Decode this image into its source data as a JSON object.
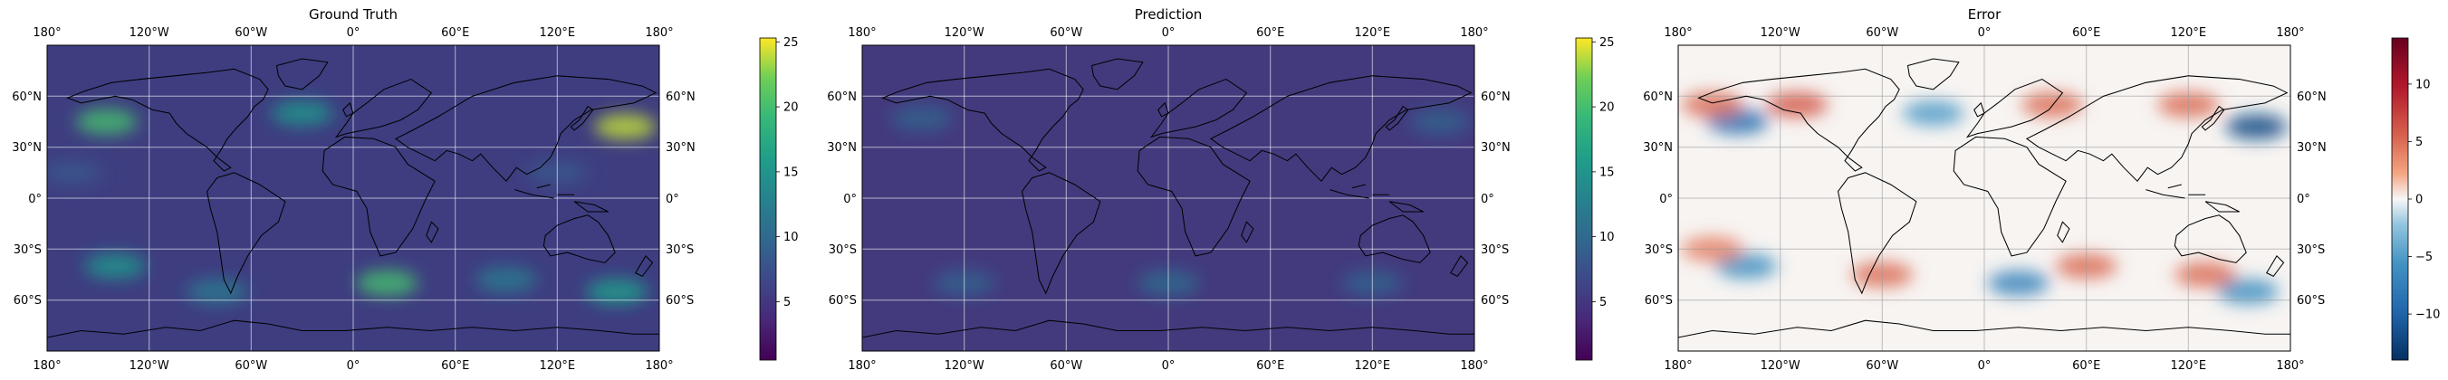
{
  "chart_data": [
    {
      "type": "heatmap",
      "title": "Ground Truth",
      "projection": "plate carree",
      "grid": true,
      "colormap": "viridis",
      "x_ticks": [
        "180°",
        "120°W",
        "60°W",
        "0°",
        "60°E",
        "120°E",
        "180°"
      ],
      "x_tick_values": [
        -180,
        -120,
        -60,
        0,
        60,
        120,
        180
      ],
      "y_ticks": [
        "60°N",
        "30°N",
        "0°",
        "30°S",
        "60°S"
      ],
      "y_tick_values": [
        60,
        30,
        0,
        -30,
        -60
      ],
      "colorbar": {
        "ticks": [
          "5",
          "10",
          "15",
          "20",
          "25"
        ],
        "tick_values": [
          5,
          10,
          15,
          20,
          25
        ],
        "range": [
          0.5,
          25.3
        ]
      },
      "features": [
        {
          "lon": -145,
          "lat": 45,
          "value": 20
        },
        {
          "lon": 160,
          "lat": 42,
          "value": 24
        },
        {
          "lon": -140,
          "lat": -40,
          "value": 15
        },
        {
          "lon": 20,
          "lat": -50,
          "value": 20
        },
        {
          "lon": 155,
          "lat": -55,
          "value": 16
        },
        {
          "lon": -30,
          "lat": 50,
          "value": 15
        },
        {
          "lon": -80,
          "lat": -55,
          "value": 12
        },
        {
          "lon": 90,
          "lat": -48,
          "value": 12
        },
        {
          "lon": -165,
          "lat": 15,
          "value": 8
        },
        {
          "lon": 120,
          "lat": 15,
          "value": 8
        }
      ]
    },
    {
      "type": "heatmap",
      "title": "Prediction",
      "projection": "plate carree",
      "grid": true,
      "colormap": "viridis",
      "x_ticks": [
        "180°",
        "120°W",
        "60°W",
        "0°",
        "60°E",
        "120°E",
        "180°"
      ],
      "x_tick_values": [
        -180,
        -120,
        -60,
        0,
        60,
        120,
        180
      ],
      "y_ticks": [
        "60°N",
        "30°N",
        "0°",
        "30°S",
        "60°S"
      ],
      "y_tick_values": [
        60,
        30,
        0,
        -30,
        -60
      ],
      "colorbar": {
        "ticks": [
          "5",
          "10",
          "15",
          "20",
          "25"
        ],
        "tick_values": [
          5,
          10,
          15,
          20,
          25
        ],
        "range": [
          0.5,
          25.3
        ]
      },
      "features": [
        {
          "lon": -145,
          "lat": 47,
          "value": 9
        },
        {
          "lon": 160,
          "lat": 45,
          "value": 9
        },
        {
          "lon": 0,
          "lat": -50,
          "value": 10
        },
        {
          "lon": 120,
          "lat": -50,
          "value": 9
        },
        {
          "lon": -120,
          "lat": -50,
          "value": 9
        }
      ]
    },
    {
      "type": "heatmap",
      "title": "Error",
      "projection": "plate carree",
      "grid": true,
      "colormap": "RdBu_r",
      "x_ticks": [
        "180°",
        "120°W",
        "60°W",
        "0°",
        "60°E",
        "120°E",
        "180°"
      ],
      "x_tick_values": [
        -180,
        -120,
        -60,
        0,
        60,
        120,
        180
      ],
      "y_ticks": [
        "60°N",
        "30°N",
        "0°",
        "30°S",
        "60°S"
      ],
      "y_tick_values": [
        60,
        30,
        0,
        -30,
        -60
      ],
      "colorbar": {
        "ticks": [
          "10",
          "5",
          "0",
          "−5",
          "−10"
        ],
        "tick_values": [
          10,
          5,
          0,
          -5,
          -10
        ],
        "range": [
          -14,
          14
        ]
      },
      "features": [
        {
          "lon": -145,
          "lat": 45,
          "value": -9
        },
        {
          "lon": 160,
          "lat": 42,
          "value": -12
        },
        {
          "lon": -140,
          "lat": -40,
          "value": -6
        },
        {
          "lon": 20,
          "lat": -50,
          "value": -7
        },
        {
          "lon": 155,
          "lat": -55,
          "value": -6
        },
        {
          "lon": -30,
          "lat": 50,
          "value": -5
        },
        {
          "lon": -110,
          "lat": 55,
          "value": 6
        },
        {
          "lon": -160,
          "lat": 55,
          "value": 5
        },
        {
          "lon": 40,
          "lat": 55,
          "value": 5
        },
        {
          "lon": 120,
          "lat": 55,
          "value": 5
        },
        {
          "lon": -60,
          "lat": -45,
          "value": 5
        },
        {
          "lon": 60,
          "lat": -40,
          "value": 5
        },
        {
          "lon": 130,
          "lat": -45,
          "value": 5
        },
        {
          "lon": -160,
          "lat": -30,
          "value": 4
        }
      ]
    }
  ]
}
